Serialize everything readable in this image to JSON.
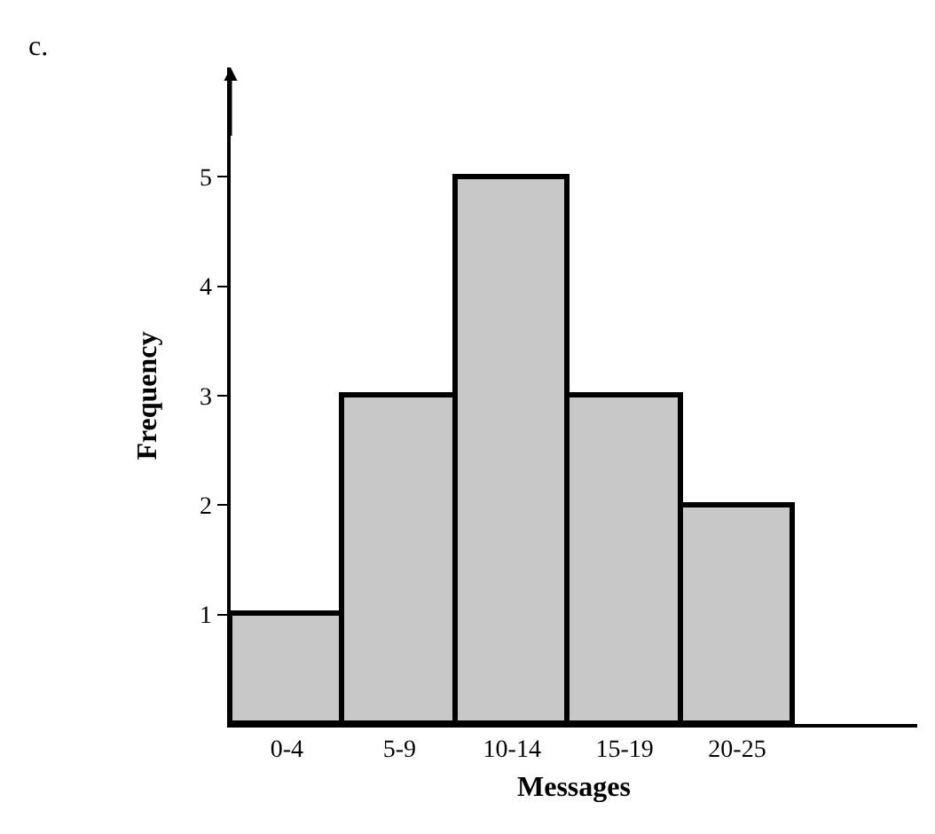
{
  "chart_data": {
    "type": "bar",
    "categories": [
      "0-4",
      "5-9",
      "10-14",
      "15-19",
      "20-25"
    ],
    "values": [
      1,
      3,
      5,
      3,
      2
    ],
    "color": "#c8c8c8",
    "xlabel": "Messages",
    "ylabel": "Frequency",
    "annotations": [
      "c."
    ],
    "ylim": [
      0,
      6
    ],
    "yticks": [
      1,
      2,
      3,
      4,
      5
    ],
    "grid": false
  }
}
